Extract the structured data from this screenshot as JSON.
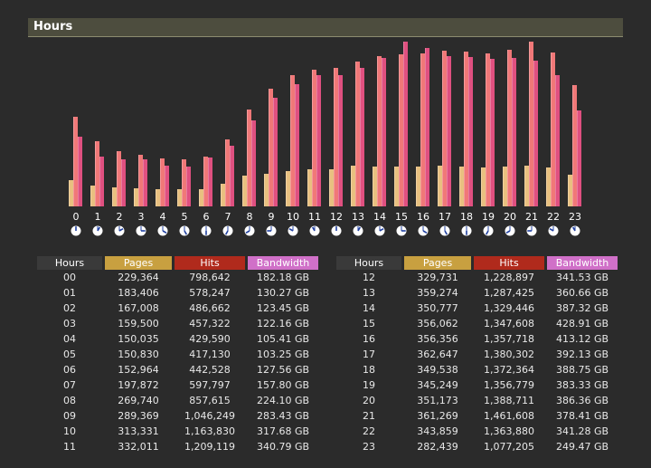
{
  "section": {
    "title": "Hours"
  },
  "colors": {
    "pages": "#e8c080",
    "hits": "#f07878",
    "bandwidth": "#e05080",
    "pages_header": "#c8a040",
    "hits_header": "#b02a1c",
    "bandwidth_header": "#d070c8"
  },
  "table": {
    "headers": {
      "hours": "Hours",
      "pages": "Pages",
      "hits": "Hits",
      "bandwidth": "Bandwidth"
    },
    "left_rows": [
      {
        "hour": "00",
        "pages": "229,364",
        "hits": "798,642",
        "bandwidth": "182.18 GB"
      },
      {
        "hour": "01",
        "pages": "183,406",
        "hits": "578,247",
        "bandwidth": "130.27 GB"
      },
      {
        "hour": "02",
        "pages": "167,008",
        "hits": "486,662",
        "bandwidth": "123.45 GB"
      },
      {
        "hour": "03",
        "pages": "159,500",
        "hits": "457,322",
        "bandwidth": "122.16 GB"
      },
      {
        "hour": "04",
        "pages": "150,035",
        "hits": "429,590",
        "bandwidth": "105.41 GB"
      },
      {
        "hour": "05",
        "pages": "150,830",
        "hits": "417,130",
        "bandwidth": "103.25 GB"
      },
      {
        "hour": "06",
        "pages": "152,964",
        "hits": "442,528",
        "bandwidth": "127.56 GB"
      },
      {
        "hour": "07",
        "pages": "197,872",
        "hits": "597,797",
        "bandwidth": "157.80 GB"
      },
      {
        "hour": "08",
        "pages": "269,740",
        "hits": "857,615",
        "bandwidth": "224.10 GB"
      },
      {
        "hour": "09",
        "pages": "289,369",
        "hits": "1,046,249",
        "bandwidth": "283.43 GB"
      },
      {
        "hour": "10",
        "pages": "313,331",
        "hits": "1,163,830",
        "bandwidth": "317.68 GB"
      },
      {
        "hour": "11",
        "pages": "332,011",
        "hits": "1,209,119",
        "bandwidth": "340.79 GB"
      }
    ],
    "right_rows": [
      {
        "hour": "12",
        "pages": "329,731",
        "hits": "1,228,897",
        "bandwidth": "341.53 GB"
      },
      {
        "hour": "13",
        "pages": "359,274",
        "hits": "1,287,425",
        "bandwidth": "360.66 GB"
      },
      {
        "hour": "14",
        "pages": "350,777",
        "hits": "1,329,446",
        "bandwidth": "387.32 GB"
      },
      {
        "hour": "15",
        "pages": "356,062",
        "hits": "1,347,608",
        "bandwidth": "428.91 GB"
      },
      {
        "hour": "16",
        "pages": "356,356",
        "hits": "1,357,718",
        "bandwidth": "413.12 GB"
      },
      {
        "hour": "17",
        "pages": "362,647",
        "hits": "1,380,302",
        "bandwidth": "392.13 GB"
      },
      {
        "hour": "18",
        "pages": "349,538",
        "hits": "1,372,364",
        "bandwidth": "388.75 GB"
      },
      {
        "hour": "19",
        "pages": "345,249",
        "hits": "1,356,779",
        "bandwidth": "383.33 GB"
      },
      {
        "hour": "20",
        "pages": "351,173",
        "hits": "1,388,711",
        "bandwidth": "386.36 GB"
      },
      {
        "hour": "21",
        "pages": "361,269",
        "hits": "1,461,608",
        "bandwidth": "378.41 GB"
      },
      {
        "hour": "22",
        "pages": "343,859",
        "hits": "1,363,880",
        "bandwidth": "341.28 GB"
      },
      {
        "hour": "23",
        "pages": "282,439",
        "hits": "1,077,205",
        "bandwidth": "249.47 GB"
      }
    ]
  },
  "chart_data": {
    "type": "bar",
    "categories": [
      "0",
      "1",
      "2",
      "3",
      "4",
      "5",
      "6",
      "7",
      "8",
      "9",
      "10",
      "11",
      "12",
      "13",
      "14",
      "15",
      "16",
      "17",
      "18",
      "19",
      "20",
      "21",
      "22",
      "23"
    ],
    "series": [
      {
        "name": "Pages",
        "values": [
          229364,
          183406,
          167008,
          159500,
          150035,
          150830,
          152964,
          197872,
          269740,
          289369,
          313331,
          332011,
          329731,
          359274,
          350777,
          356062,
          356356,
          362647,
          349538,
          345249,
          351173,
          361269,
          343859,
          282439
        ]
      },
      {
        "name": "Hits",
        "values": [
          798642,
          578247,
          486662,
          457322,
          429590,
          417130,
          442528,
          597797,
          857615,
          1046249,
          1163830,
          1209119,
          1228897,
          1287425,
          1329446,
          1347608,
          1357718,
          1380302,
          1372364,
          1356779,
          1388711,
          1461608,
          1363880,
          1077205
        ]
      },
      {
        "name": "Bandwidth",
        "values": [
          182.18,
          130.27,
          123.45,
          122.16,
          105.41,
          103.25,
          127.56,
          157.8,
          224.1,
          283.43,
          317.68,
          340.79,
          341.53,
          360.66,
          387.32,
          428.91,
          413.12,
          392.13,
          388.75,
          383.33,
          386.36,
          378.41,
          341.28,
          249.47
        ]
      }
    ],
    "units": {
      "Bandwidth": "GB"
    }
  }
}
